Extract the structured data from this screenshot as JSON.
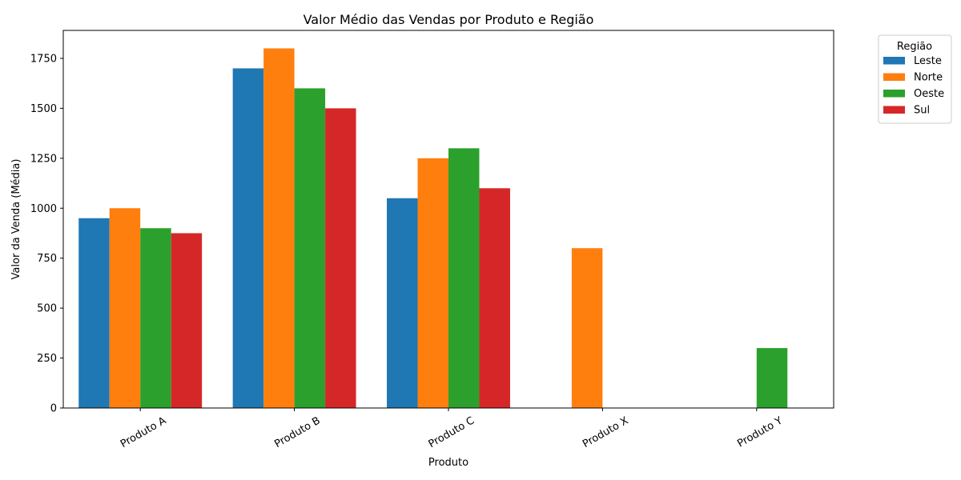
{
  "chart_data": {
    "type": "bar",
    "title": "Valor Médio das Vendas por Produto e Região",
    "xlabel": "Produto",
    "ylabel": "Valor da Venda (Média)",
    "categories": [
      "Produto A",
      "Produto B",
      "Produto C",
      "Produto X",
      "Produto Y"
    ],
    "series": [
      {
        "name": "Leste",
        "color": "#1f77b4",
        "values": [
          950,
          1700,
          1050,
          0,
          0
        ]
      },
      {
        "name": "Norte",
        "color": "#ff7f0e",
        "values": [
          1000,
          1800,
          1250,
          800,
          0
        ]
      },
      {
        "name": "Oeste",
        "color": "#2ca02c",
        "values": [
          900,
          1600,
          1300,
          0,
          300
        ]
      },
      {
        "name": "Sul",
        "color": "#d62728",
        "values": [
          875,
          1500,
          1100,
          0,
          0
        ]
      }
    ],
    "ylim": [
      0,
      1890
    ],
    "yticks": [
      0,
      250,
      500,
      750,
      1000,
      1250,
      1500,
      1750
    ],
    "grid": false,
    "legend": {
      "title": "Região",
      "placement": "outside top-right"
    }
  }
}
